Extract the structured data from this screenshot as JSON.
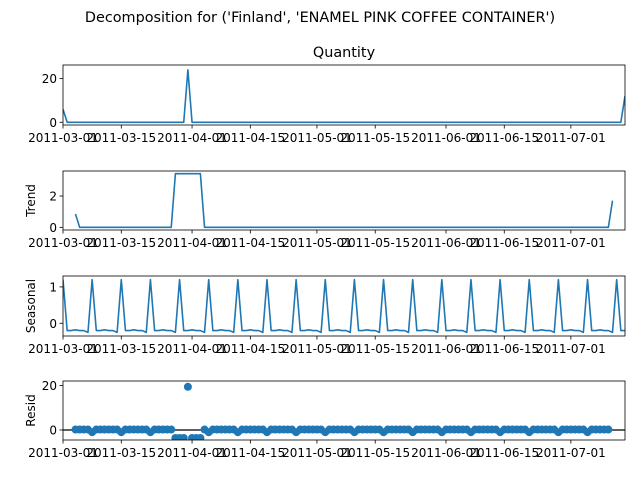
{
  "figure_title": "Decomposition for ('Finland', 'ENAMEL PINK COFFEE CONTAINER')",
  "colors": {
    "line": "#1f77b4",
    "axis": "#000000",
    "background": "#ffffff"
  },
  "chart_data": [
    {
      "type": "line",
      "title": "Quantity",
      "ylabel": "",
      "xlabel": "",
      "x_start": "2011-03-01",
      "x_end": "2011-07-14",
      "xlim": [
        "2011-03-01",
        "2011-07-14"
      ],
      "ylim": [
        -1.25,
        26.25
      ],
      "yticks": [
        0,
        20
      ],
      "xticklabels": [
        "2011-03-01",
        "2011-03-15",
        "2011-04-01",
        "2011-04-15",
        "2011-05-01",
        "2011-05-15",
        "2011-06-01",
        "2011-06-15",
        "2011-07-01"
      ],
      "points": [
        [
          "2011-03-01",
          6
        ],
        [
          "2011-03-02",
          0
        ],
        [
          "2011-03-30",
          0
        ],
        [
          "2011-03-31",
          24
        ],
        [
          "2011-04-01",
          0
        ],
        [
          "2011-07-13",
          0
        ],
        [
          "2011-07-14",
          12
        ]
      ]
    },
    {
      "type": "line",
      "title": "",
      "ylabel": "Trend",
      "xlabel": "",
      "xlim": [
        "2011-03-01",
        "2011-07-14"
      ],
      "ylim": [
        -0.17,
        3.6
      ],
      "yticks": [
        0,
        2
      ],
      "xticklabels": [
        "2011-03-01",
        "2011-03-15",
        "2011-04-01",
        "2011-04-15",
        "2011-05-01",
        "2011-05-15",
        "2011-06-01",
        "2011-06-15",
        "2011-07-01"
      ],
      "points": [
        [
          "2011-03-04",
          0.857
        ],
        [
          "2011-03-05",
          0
        ],
        [
          "2011-03-27",
          0
        ],
        [
          "2011-03-28",
          3.43
        ],
        [
          "2011-04-03",
          3.43
        ],
        [
          "2011-04-04",
          0
        ],
        [
          "2011-07-10",
          0
        ],
        [
          "2011-07-11",
          1.71
        ]
      ]
    },
    {
      "type": "line",
      "title": "",
      "ylabel": "Seasonal",
      "xlabel": "",
      "xlim": [
        "2011-03-01",
        "2011-07-14"
      ],
      "ylim": [
        -0.35,
        1.3
      ],
      "yticks": [
        0,
        1
      ],
      "xticklabels": [
        "2011-03-01",
        "2011-03-15",
        "2011-04-01",
        "2011-04-15",
        "2011-05-01",
        "2011-05-15",
        "2011-06-01",
        "2011-06-15",
        "2011-07-01"
      ],
      "period": 7,
      "weekly_pattern": [
        1.2,
        -0.2,
        -0.2,
        -0.18,
        -0.2,
        -0.2,
        -0.25
      ]
    },
    {
      "type": "scatter",
      "title": "",
      "ylabel": "Resid",
      "xlabel": "",
      "xlim": [
        "2011-03-01",
        "2011-07-14"
      ],
      "ylim": [
        -4.5,
        22
      ],
      "yticks": [
        0,
        20
      ],
      "zero_line": true,
      "xticklabels": [
        "2011-03-01",
        "2011-03-15",
        "2011-04-01",
        "2011-04-15",
        "2011-05-01",
        "2011-05-15",
        "2011-06-01",
        "2011-06-15",
        "2011-07-01"
      ],
      "default_value": 0.2,
      "negative_dip_value": -1.0,
      "special_points": [
        [
          "2011-03-28",
          -3.6
        ],
        [
          "2011-03-29",
          -3.6
        ],
        [
          "2011-03-30",
          -3.6
        ],
        [
          "2011-03-31",
          19.4
        ],
        [
          "2011-04-01",
          -3.6
        ],
        [
          "2011-04-02",
          -3.6
        ],
        [
          "2011-04-03",
          -3.6
        ]
      ],
      "omitted_ranges": [
        [
          "2011-03-01",
          "2011-03-03"
        ],
        [
          "2011-07-11",
          "2011-07-14"
        ]
      ]
    }
  ]
}
